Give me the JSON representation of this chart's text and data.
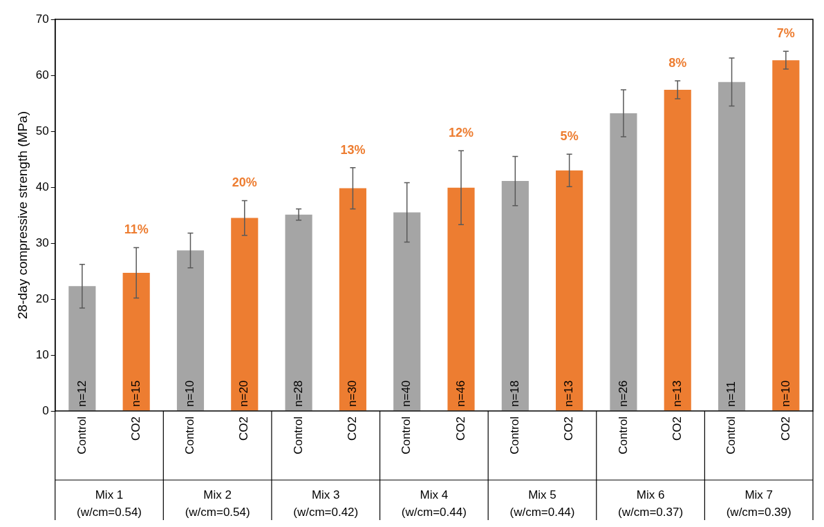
{
  "chart_data": {
    "type": "bar",
    "ylabel": "28-day compressive strength (MPa)",
    "categories": [
      "Mix 1\n(w/cm=0.54)",
      "Mix 2\n(w/cm=0.54)",
      "Mix 3\n(w/cm=0.42)",
      "Mix 4\n(w/cm=0.44)",
      "Mix 5\n(w/cm=0.44)",
      "Mix 6\n(w/cm=0.37)",
      "Mix 7\n(w/cm=0.39)"
    ],
    "series": [
      {
        "name": "Control",
        "color": "#a5a5a5",
        "values": [
          22.3,
          28.7,
          35.1,
          35.5,
          41.1,
          53.2,
          58.8
        ],
        "errors": [
          3.9,
          3.1,
          1.0,
          5.3,
          4.4,
          4.2,
          4.3
        ]
      },
      {
        "name": "CO2",
        "color": "#ed7d31",
        "values": [
          24.7,
          34.5,
          39.8,
          39.9,
          43.0,
          57.4,
          62.7
        ],
        "errors": [
          4.5,
          3.1,
          3.7,
          6.6,
          2.9,
          1.6,
          1.6
        ]
      }
    ],
    "annotations": [
      "11%",
      "20%",
      "13%",
      "12%",
      "5%",
      "8%",
      "7%",
      "n=12",
      "n=15",
      "n=10",
      "n=20",
      "n=28",
      "n=30",
      "n=40",
      "n=46",
      "n=18",
      "n=13",
      "n=26",
      "n=13",
      "n=11",
      "n=10"
    ],
    "ylim": [
      0,
      70
    ],
    "yticks": [
      0,
      10,
      20,
      30,
      40,
      50,
      60,
      70
    ],
    "grid": false,
    "legend": false
  }
}
